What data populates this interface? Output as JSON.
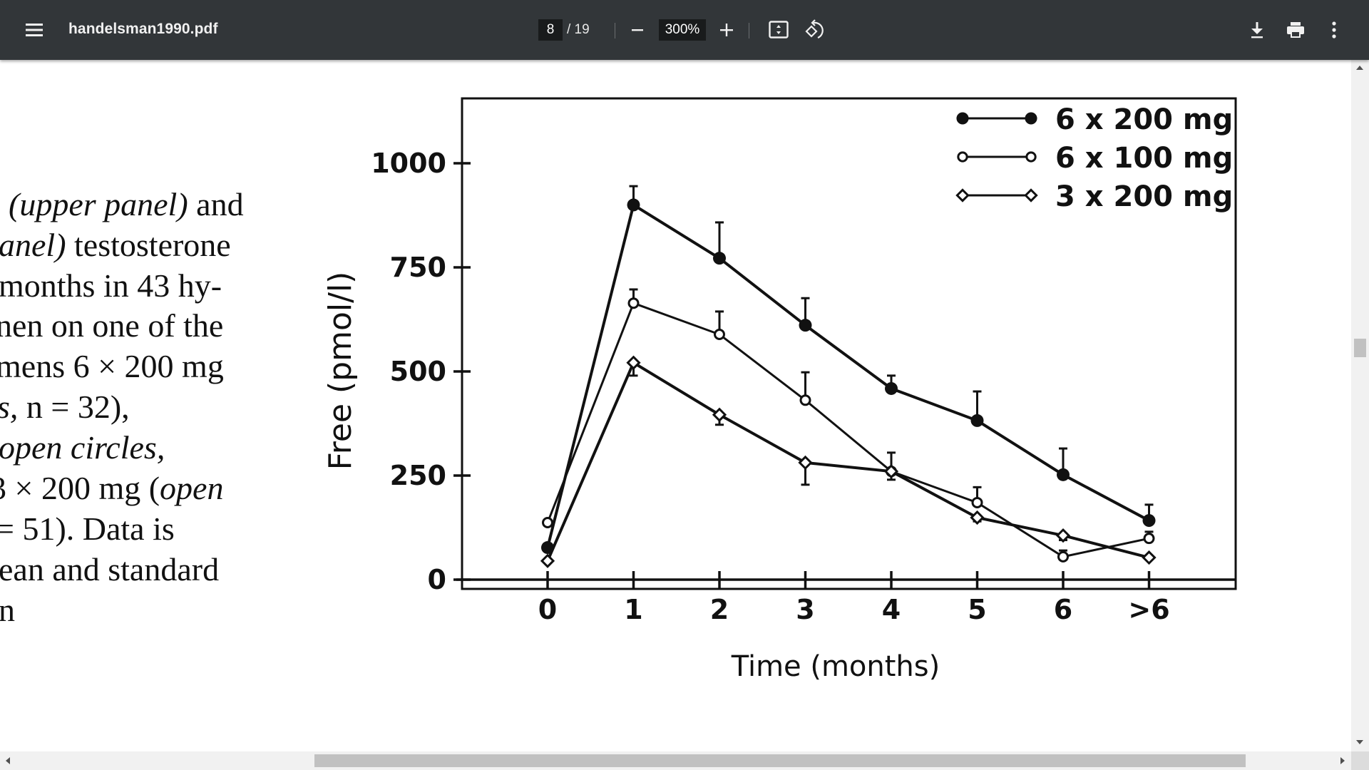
{
  "toolbar": {
    "title": "handelsman1990.pdf",
    "page_current": "8",
    "page_total": "/ 19",
    "zoom_level": "300%",
    "icons": [
      "menu-icon",
      "zoom-out-icon",
      "zoom-in-icon",
      "fit-page-icon",
      "rotate-icon",
      "download-icon",
      "print-icon",
      "more-options-icon"
    ]
  },
  "caption": {
    "lines": [
      {
        "italic": "(upper panel)",
        "normal": " and"
      },
      {
        "italic": "anel)",
        "normal": " testosterone"
      },
      {
        "italic": "",
        "normal": " months in 43 hy-"
      },
      {
        "italic": "",
        "normal": "nen on one of the"
      },
      {
        "italic": "",
        "normal": "mens 6 × 200 mg"
      },
      {
        "italic": "s,",
        "normal": " n = 32),"
      },
      {
        "italic": "open circles,",
        "normal": ""
      },
      {
        "italic": "",
        "normal": "3 × 200 mg (",
        "italic2": "open"
      },
      {
        "italic": "",
        "normal": "= 51). Data is"
      },
      {
        "italic": "",
        "normal": "ean and standard"
      },
      {
        "italic": "",
        "normal": "n"
      }
    ]
  },
  "chart_data": {
    "type": "line",
    "title": "",
    "xlabel": "Time (months)",
    "ylabel": "Free (pmol/l)",
    "categories": [
      "0",
      "1",
      "2",
      "3",
      "4",
      "5",
      "6",
      ">6"
    ],
    "ylim": [
      0,
      1100
    ],
    "yticks": [
      0,
      250,
      500,
      750,
      1000
    ],
    "grid": false,
    "legend_position": "upper right",
    "series": [
      {
        "name": "6 x 200 mg",
        "marker": "filled-circle",
        "values": [
          77,
          900,
          772,
          611,
          459,
          382,
          252,
          142
        ],
        "error_upper": [
          150,
          945,
          858,
          676,
          490,
          452,
          315,
          180
        ]
      },
      {
        "name": "6 x 100 mg",
        "marker": "open-circle",
        "values": [
          137,
          664,
          589,
          431,
          260,
          185,
          55,
          99
        ],
        "error_upper": [
          160,
          697,
          644,
          498,
          305,
          222,
          70,
          115
        ]
      },
      {
        "name": "3 x 200 mg",
        "marker": "open-diamond",
        "values": [
          45,
          521,
          396,
          281,
          260,
          149,
          106,
          53
        ],
        "error_lower": [
          40,
          490,
          372,
          228,
          240,
          140,
          95,
          50
        ]
      }
    ]
  },
  "colors": {
    "toolbar_bg": "#323639",
    "toolbar_text": "#f1f1f1",
    "input_bg": "#191b1c",
    "scrollbar_track": "#f1f1f1",
    "scrollbar_thumb": "#c1c1c1"
  }
}
